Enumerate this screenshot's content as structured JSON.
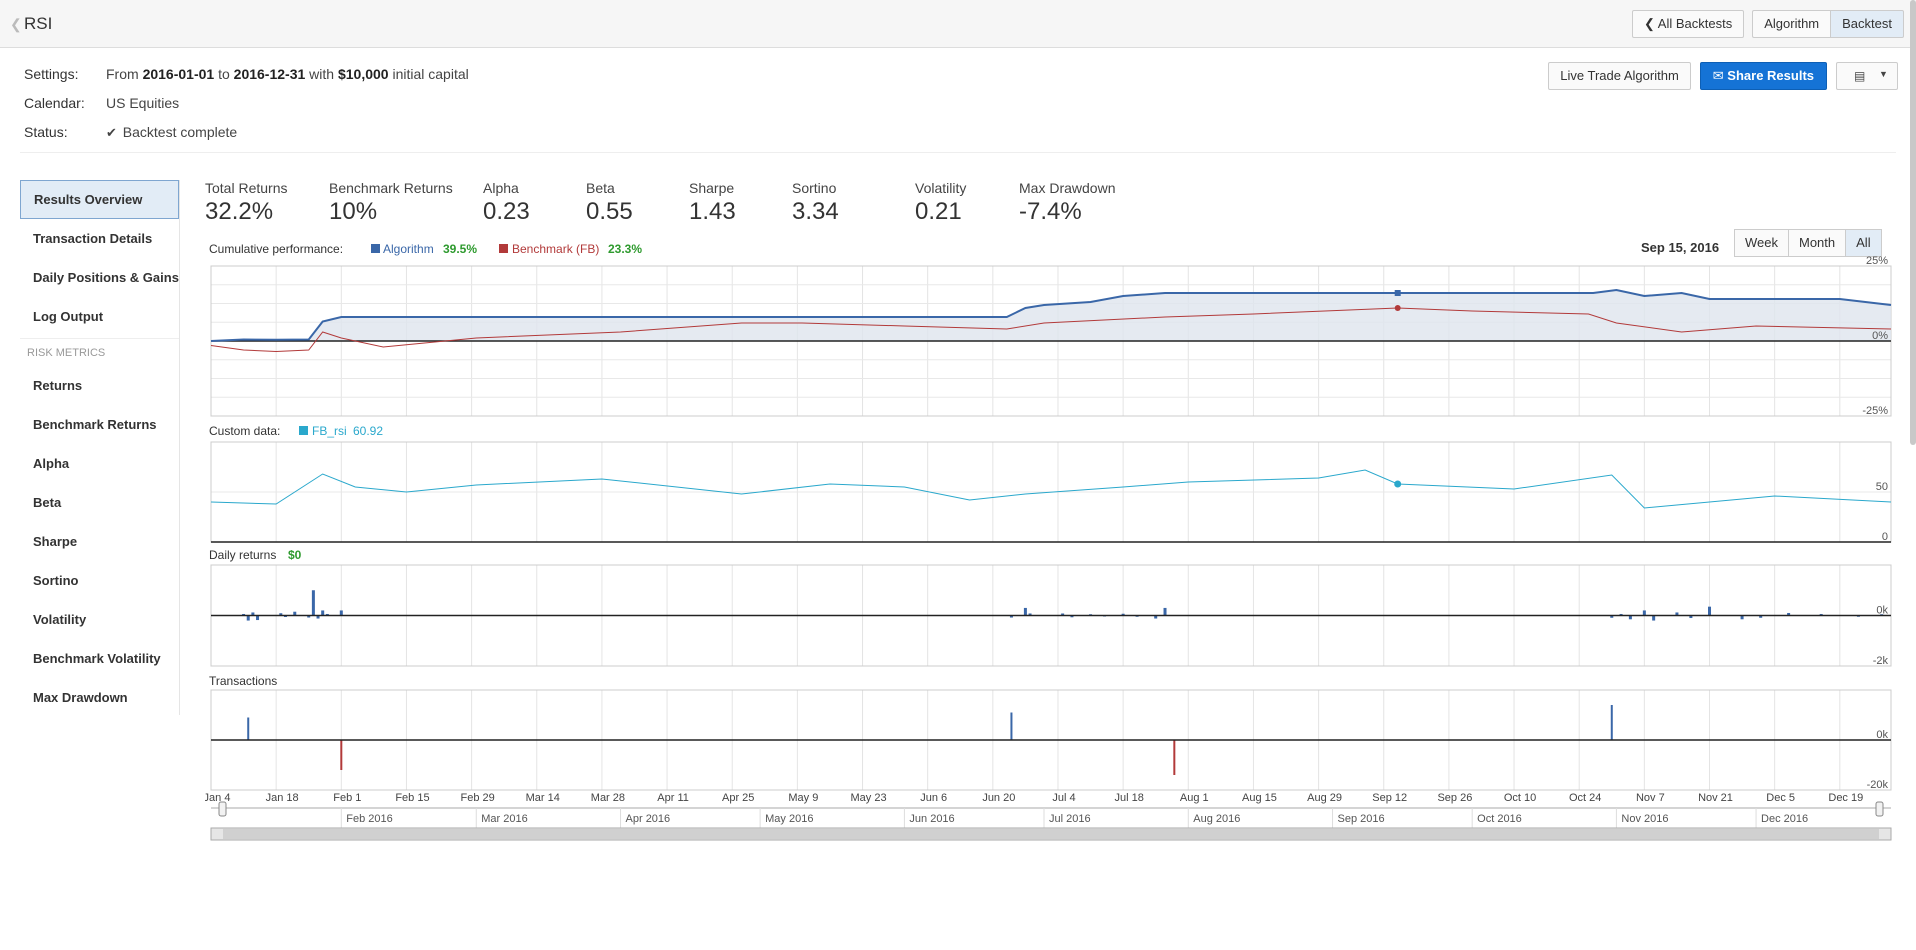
{
  "header": {
    "title": "RSI",
    "buttons": {
      "all_backtests": "All Backtests",
      "algorithm": "Algorithm",
      "backtest": "Backtest"
    }
  },
  "settings": {
    "settings_label": "Settings:",
    "from_prefix": "From",
    "start_date": "2016-01-01",
    "to_word": "to",
    "end_date": "2016-12-31",
    "with_word": "with",
    "capital": "$10,000",
    "capital_suffix": "initial capital",
    "calendar_label": "Calendar:",
    "calendar_value": "US Equities",
    "status_label": "Status:",
    "status_value": "Backtest complete"
  },
  "actions": {
    "live_trade": "Live Trade Algorithm",
    "share": "Share Results"
  },
  "sidebar": {
    "items": [
      "Results Overview",
      "Transaction Details",
      "Daily Positions & Gains",
      "Log Output"
    ],
    "risk_header": "RISK METRICS",
    "risk_items": [
      "Returns",
      "Benchmark Returns",
      "Alpha",
      "Beta",
      "Sharpe",
      "Sortino",
      "Volatility",
      "Benchmark Volatility",
      "Max Drawdown"
    ]
  },
  "metrics": [
    {
      "label": "Total Returns",
      "value": "32.2%"
    },
    {
      "label": "Benchmark Returns",
      "value": "10%"
    },
    {
      "label": "Alpha",
      "value": "0.23"
    },
    {
      "label": "Beta",
      "value": "0.55"
    },
    {
      "label": "Sharpe",
      "value": "1.43"
    },
    {
      "label": "Sortino",
      "value": "3.34"
    },
    {
      "label": "Volatility",
      "value": "0.21"
    },
    {
      "label": "Max Drawdown",
      "value": "-7.4%"
    }
  ],
  "range": {
    "date": "Sep 15, 2016",
    "buttons": [
      "Week",
      "Month",
      "All"
    ],
    "active": "All"
  },
  "colors": {
    "algorithm": "#3a67a8",
    "benchmark": "#b23a3a",
    "rsi": "#2aa8cc",
    "positive": "#2e9a2e",
    "fill": "#dfe5ee"
  },
  "chart_data": [
    {
      "type": "line",
      "title": "Cumulative performance:",
      "series": [
        {
          "name": "Algorithm",
          "legend_value": "39.5%",
          "x": [
            "2016-01-04",
            "2016-01-11",
            "2016-01-18",
            "2016-01-25",
            "2016-01-28",
            "2016-02-01",
            "2016-03-01",
            "2016-04-01",
            "2016-05-02",
            "2016-06-01",
            "2016-06-23",
            "2016-06-27",
            "2016-07-01",
            "2016-07-11",
            "2016-07-18",
            "2016-07-27",
            "2016-08-15",
            "2016-09-15",
            "2016-10-27",
            "2016-11-01",
            "2016-11-07",
            "2016-11-15",
            "2016-11-21",
            "2016-12-05",
            "2016-12-19",
            "2016-12-30"
          ],
          "values": [
            0,
            0.5,
            0.4,
            0.5,
            6.5,
            8,
            8,
            8,
            8,
            8,
            8,
            11,
            12,
            13,
            15,
            16,
            16,
            16,
            16,
            17,
            15,
            16,
            14,
            14,
            14,
            12
          ]
        },
        {
          "name": "Benchmark (FB)",
          "legend_value": "23.3%",
          "x": [
            "2016-01-04",
            "2016-01-11",
            "2016-01-18",
            "2016-01-25",
            "2016-01-28",
            "2016-02-01",
            "2016-02-10",
            "2016-03-01",
            "2016-04-01",
            "2016-04-27",
            "2016-05-10",
            "2016-06-01",
            "2016-06-23",
            "2016-07-01",
            "2016-07-27",
            "2016-08-15",
            "2016-09-15",
            "2016-10-01",
            "2016-10-26",
            "2016-11-01",
            "2016-11-15",
            "2016-12-01",
            "2016-12-30"
          ],
          "values": [
            -1.5,
            -3,
            -3.5,
            -3,
            3,
            1,
            -2,
            1,
            3,
            6,
            6,
            5,
            4,
            6,
            8,
            9,
            11,
            10,
            9,
            6,
            3,
            5,
            4
          ]
        }
      ],
      "y_ticks": [
        "25%",
        "0%",
        "-25%"
      ],
      "ylim": [
        -25,
        25
      ]
    },
    {
      "type": "line",
      "title": "Custom data:",
      "series": [
        {
          "name": "FB_rsi",
          "legend_value": "60.92",
          "x": [
            "2016-01-04",
            "2016-01-18",
            "2016-01-28",
            "2016-02-04",
            "2016-02-15",
            "2016-03-01",
            "2016-03-28",
            "2016-04-27",
            "2016-05-16",
            "2016-06-01",
            "2016-06-15",
            "2016-06-27",
            "2016-07-18",
            "2016-08-01",
            "2016-08-29",
            "2016-09-08",
            "2016-09-15",
            "2016-10-10",
            "2016-10-31",
            "2016-11-07",
            "2016-11-21",
            "2016-12-05",
            "2016-12-30"
          ],
          "values": [
            40,
            38,
            68,
            55,
            50,
            57,
            63,
            48,
            58,
            55,
            42,
            48,
            55,
            60,
            64,
            72,
            58,
            53,
            67,
            34,
            40,
            46,
            40
          ]
        }
      ],
      "y_ticks": [
        "50",
        "0"
      ],
      "ylim": [
        0,
        100
      ]
    },
    {
      "type": "bar",
      "title": "Daily returns",
      "title_value": "$0",
      "series": [
        {
          "name": "Daily returns",
          "x": [
            "2016-01-11",
            "2016-01-12",
            "2016-01-13",
            "2016-01-14",
            "2016-01-19",
            "2016-01-20",
            "2016-01-22",
            "2016-01-25",
            "2016-01-26",
            "2016-01-27",
            "2016-01-28",
            "2016-01-29",
            "2016-02-01",
            "2016-06-24",
            "2016-06-27",
            "2016-06-28",
            "2016-07-05",
            "2016-07-07",
            "2016-07-11",
            "2016-07-14",
            "2016-07-18",
            "2016-07-21",
            "2016-07-25",
            "2016-07-27",
            "2016-10-31",
            "2016-11-02",
            "2016-11-04",
            "2016-11-07",
            "2016-11-09",
            "2016-11-14",
            "2016-11-17",
            "2016-11-21",
            "2016-11-28",
            "2016-12-02",
            "2016-12-08",
            "2016-12-15",
            "2016-12-23",
            "2016-12-28"
          ],
          "values": [
            60,
            -200,
            120,
            -180,
            90,
            -60,
            150,
            -80,
            1000,
            -120,
            200,
            60,
            200,
            -80,
            300,
            80,
            80,
            -70,
            50,
            -40,
            70,
            -50,
            -120,
            300,
            -90,
            60,
            -150,
            200,
            -200,
            120,
            -100,
            350,
            -150,
            -90,
            100,
            60,
            -50,
            50
          ]
        }
      ],
      "y_ticks": [
        "0k",
        "-2k"
      ],
      "ylim": [
        -2000,
        2000
      ]
    },
    {
      "type": "bar",
      "title": "Transactions",
      "series": [
        {
          "name": "Transactions",
          "x": [
            "2016-01-12",
            "2016-02-01",
            "2016-06-24",
            "2016-07-29",
            "2016-10-31"
          ],
          "values": [
            9000,
            -12000,
            11000,
            -14000,
            14000
          ]
        }
      ],
      "y_ticks": [
        "0k",
        "-20k"
      ],
      "ylim": [
        -20000,
        20000
      ]
    }
  ],
  "x_axis": {
    "tick_labels": [
      "Jan 4",
      "Jan 18",
      "Feb 1",
      "Feb 15",
      "Feb 29",
      "Mar 14",
      "Mar 28",
      "Apr 11",
      "Apr 25",
      "May 9",
      "May 23",
      "Jun 6",
      "Jun 20",
      "Jul 4",
      "Jul 18",
      "Aug 1",
      "Aug 15",
      "Aug 29",
      "Sep 12",
      "Sep 26",
      "Oct 10",
      "Oct 24",
      "Nov 7",
      "Nov 21",
      "Dec 5",
      "Dec 19"
    ],
    "tick_dates": [
      "2016-01-04",
      "2016-01-18",
      "2016-02-01",
      "2016-02-15",
      "2016-02-29",
      "2016-03-14",
      "2016-03-28",
      "2016-04-11",
      "2016-04-25",
      "2016-05-09",
      "2016-05-23",
      "2016-06-06",
      "2016-06-20",
      "2016-07-04",
      "2016-07-18",
      "2016-08-01",
      "2016-08-15",
      "2016-08-29",
      "2016-09-12",
      "2016-09-26",
      "2016-10-10",
      "2016-10-24",
      "2016-11-07",
      "2016-11-21",
      "2016-12-05",
      "2016-12-19"
    ],
    "navigator_labels": [
      "Feb 2016",
      "Mar 2016",
      "Apr 2016",
      "May 2016",
      "Jun 2016",
      "Jul 2016",
      "Aug 2016",
      "Sep 2016",
      "Oct 2016",
      "Nov 2016",
      "Dec 2016"
    ],
    "navigator_dates": [
      "2016-02-01",
      "2016-03-01",
      "2016-04-01",
      "2016-05-01",
      "2016-06-01",
      "2016-07-01",
      "2016-08-01",
      "2016-09-01",
      "2016-10-01",
      "2016-11-01",
      "2016-12-01"
    ],
    "start": "2016-01-04",
    "end": "2016-12-30"
  }
}
